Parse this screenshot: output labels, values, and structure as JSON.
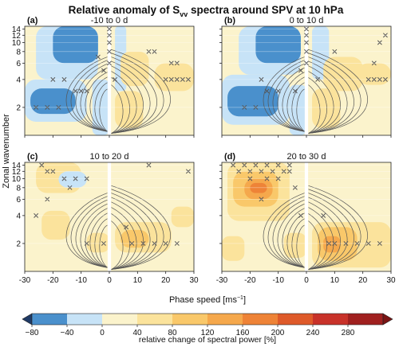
{
  "figure": {
    "title_prefix": "Relative anomaly of S",
    "title_sub": "vv",
    "title_suffix": " spectra around SPV at 10 hPa",
    "ylabel": "Zonal wavenumber",
    "xlabel_main": "Phase speed [ms",
    "xlabel_sup": "−1",
    "xlabel_end": "]",
    "colorbar_label": "relative change of spectral power [%]"
  },
  "chart_data": {
    "type": "heatmap",
    "x_ticks": [
      -30,
      -20,
      -10,
      0,
      10,
      20,
      30
    ],
    "y_ticks": [
      2,
      4,
      6,
      8,
      10,
      12,
      14
    ],
    "xlim": [
      -30,
      30
    ],
    "ylim": [
      1,
      15
    ],
    "y_scale": "log",
    "levels": [
      -80,
      -40,
      0,
      40,
      80,
      120,
      160,
      200,
      240,
      280
    ],
    "colors": [
      "#4a90cc",
      "#c7e3f7",
      "#fbf3cc",
      "#fbe39c",
      "#f9c86a",
      "#f5a84c",
      "#ee8337",
      "#de5a2a",
      "#c8322a",
      "#a0201f"
    ],
    "colorbar_end_low": "#1f3a66",
    "colorbar_end_high": "#7a1414",
    "panels": [
      {
        "label": "(a)",
        "title": "-10 to 0 d"
      },
      {
        "label": "(b)",
        "title": "0 to 10 d"
      },
      {
        "label": "(c)",
        "title": "10 to 20 d"
      },
      {
        "label": "(d)",
        "title": "20 to 30 d"
      }
    ]
  }
}
